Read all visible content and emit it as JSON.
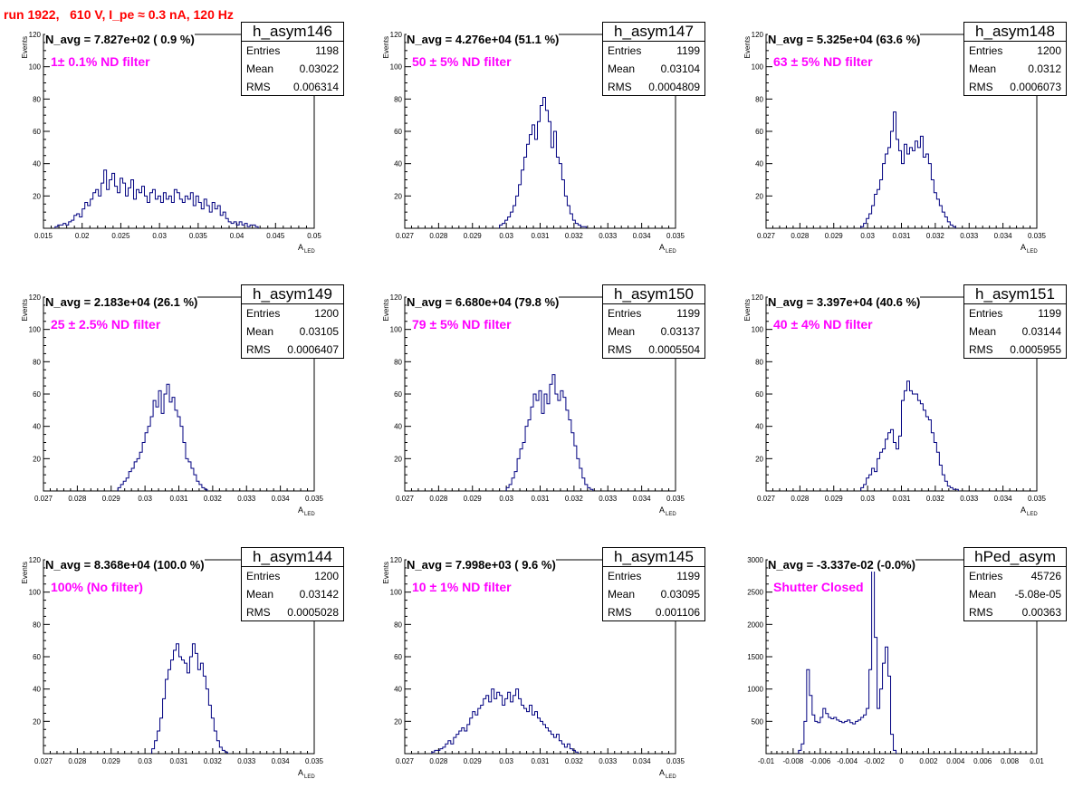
{
  "title": "run 1922,   610 V, I_pe ≈ 0.3 nA, 120 Hz",
  "colors": {
    "title": "#ff0000",
    "histogram": "#000080",
    "filter_label": "#ff00ff"
  },
  "chart_data": [
    {
      "type": "bar",
      "hist_name": "h_asym146",
      "navg_label": "N_avg = 7.827e+02 ( 0.9 %)",
      "filter_label": "1± 0.1% ND filter",
      "stats": [
        {
          "key": "Entries",
          "value": "1198"
        },
        {
          "key": "Mean",
          "value": "0.03022"
        },
        {
          "key": "RMS",
          "value": "0.006314"
        }
      ],
      "ylabel": "Events",
      "xlabel_main": "A",
      "xlabel_sub": "LED",
      "xlim": [
        0.015,
        0.05
      ],
      "ylim": [
        0,
        120
      ],
      "xticks": [
        0.015,
        0.02,
        0.025,
        0.03,
        0.035,
        0.04,
        0.045,
        0.05
      ],
      "xtick_labels": [
        "0.015",
        "0.02",
        "0.025",
        "0.03",
        "0.035",
        "0.04",
        "0.045",
        "0.05"
      ],
      "yticks": [
        20,
        40,
        60,
        80,
        100,
        120
      ],
      "bin_width": 0.00035,
      "x_start": 0.0165,
      "values": [
        1,
        2,
        2,
        3,
        2,
        4,
        5,
        8,
        9,
        7,
        12,
        16,
        14,
        18,
        22,
        24,
        20,
        28,
        36,
        24,
        30,
        34,
        26,
        22,
        31,
        28,
        20,
        25,
        30,
        18,
        24,
        22,
        26,
        20,
        16,
        22,
        24,
        18,
        20,
        16,
        22,
        18,
        20,
        16,
        24,
        22,
        18,
        16,
        20,
        18,
        22,
        14,
        20,
        16,
        12,
        18,
        14,
        10,
        16,
        12,
        14,
        8,
        10,
        6,
        4,
        3,
        4,
        2,
        4,
        2,
        3,
        1,
        2,
        2,
        1
      ]
    },
    {
      "type": "bar",
      "hist_name": "h_asym147",
      "navg_label": "N_avg = 4.276e+04 (51.1 %)",
      "filter_label": "50 ± 5% ND filter",
      "stats": [
        {
          "key": "Entries",
          "value": "1199"
        },
        {
          "key": "Mean",
          "value": "0.03104"
        },
        {
          "key": "RMS",
          "value": "0.0004809"
        }
      ],
      "ylabel": "Events",
      "xlabel_main": "A",
      "xlabel_sub": "LED",
      "xlim": [
        0.027,
        0.035
      ],
      "ylim": [
        0,
        120
      ],
      "xticks": [
        0.027,
        0.028,
        0.029,
        0.03,
        0.031,
        0.032,
        0.033,
        0.034,
        0.035
      ],
      "xtick_labels": [
        "0.027",
        "0.028",
        "0.029",
        "0.03",
        "0.031",
        "0.032",
        "0.033",
        "0.034",
        "0.035"
      ],
      "yticks": [
        20,
        40,
        60,
        80,
        100,
        120
      ],
      "bin_width": 8e-05,
      "x_start": 0.0298,
      "values": [
        2,
        3,
        5,
        7,
        10,
        14,
        20,
        27,
        36,
        44,
        52,
        58,
        64,
        55,
        66,
        76,
        81,
        73,
        66,
        50,
        60,
        44,
        40,
        30,
        20,
        14,
        9,
        5,
        3,
        2,
        1,
        1
      ]
    },
    {
      "type": "bar",
      "hist_name": "h_asym148",
      "navg_label": "N_avg = 5.325e+04 (63.6 %)",
      "filter_label": "63 ± 5% ND filter",
      "stats": [
        {
          "key": "Entries",
          "value": "1200"
        },
        {
          "key": "Mean",
          "value": "0.0312"
        },
        {
          "key": "RMS",
          "value": "0.0006073"
        }
      ],
      "ylabel": "Events",
      "xlabel_main": "A",
      "xlabel_sub": "LED",
      "xlim": [
        0.027,
        0.035
      ],
      "ylim": [
        0,
        120
      ],
      "xticks": [
        0.027,
        0.028,
        0.029,
        0.03,
        0.031,
        0.032,
        0.033,
        0.034,
        0.035
      ],
      "xtick_labels": [
        "0.027",
        "0.028",
        "0.029",
        "0.03",
        "0.031",
        "0.032",
        "0.033",
        "0.034",
        "0.035"
      ],
      "yticks": [
        20,
        40,
        60,
        80,
        100,
        120
      ],
      "bin_width": 8e-05,
      "x_start": 0.0298,
      "values": [
        1,
        3,
        6,
        9,
        14,
        21,
        24,
        30,
        40,
        46,
        50,
        60,
        72,
        55,
        48,
        40,
        52,
        46,
        50,
        48,
        54,
        50,
        57,
        44,
        46,
        40,
        30,
        22,
        18,
        14,
        10,
        7,
        4,
        2,
        1
      ]
    },
    {
      "type": "bar",
      "hist_name": "h_asym149",
      "navg_label": "N_avg = 2.183e+04 (26.1 %)",
      "filter_label": "25 ± 2.5% ND filter",
      "stats": [
        {
          "key": "Entries",
          "value": "1200"
        },
        {
          "key": "Mean",
          "value": "0.03105"
        },
        {
          "key": "RMS",
          "value": "0.0006407"
        }
      ],
      "ylabel": "Events",
      "xlabel_main": "A",
      "xlabel_sub": "LED",
      "xlim": [
        0.027,
        0.035
      ],
      "ylim": [
        0,
        120
      ],
      "xticks": [
        0.027,
        0.028,
        0.029,
        0.03,
        0.031,
        0.032,
        0.033,
        0.034,
        0.035
      ],
      "xtick_labels": [
        "0.027",
        "0.028",
        "0.029",
        "0.03",
        "0.031",
        "0.032",
        "0.033",
        "0.034",
        "0.035"
      ],
      "yticks": [
        20,
        40,
        60,
        80,
        100,
        120
      ],
      "bin_width": 8e-05,
      "x_start": 0.0292,
      "values": [
        2,
        4,
        6,
        8,
        12,
        14,
        18,
        20,
        24,
        30,
        36,
        40,
        46,
        56,
        52,
        62,
        48,
        60,
        66,
        55,
        58,
        50,
        46,
        40,
        30,
        20,
        18,
        14,
        10,
        6,
        4,
        2,
        1
      ]
    },
    {
      "type": "bar",
      "hist_name": "h_asym150",
      "navg_label": "N_avg = 6.680e+04 (79.8 %)",
      "filter_label": "79 ± 5% ND filter",
      "stats": [
        {
          "key": "Entries",
          "value": "1199"
        },
        {
          "key": "Mean",
          "value": "0.03137"
        },
        {
          "key": "RMS",
          "value": "0.0005504"
        }
      ],
      "ylabel": "Events",
      "xlabel_main": "A",
      "xlabel_sub": "LED",
      "xlim": [
        0.027,
        0.035
      ],
      "ylim": [
        0,
        120
      ],
      "xticks": [
        0.027,
        0.028,
        0.029,
        0.03,
        0.031,
        0.032,
        0.033,
        0.034,
        0.035
      ],
      "xtick_labels": [
        "0.027",
        "0.028",
        "0.029",
        "0.03",
        "0.031",
        "0.032",
        "0.033",
        "0.034",
        "0.035"
      ],
      "yticks": [
        20,
        40,
        60,
        80,
        100,
        120
      ],
      "bin_width": 8e-05,
      "x_start": 0.03,
      "values": [
        2,
        4,
        8,
        12,
        20,
        26,
        30,
        40,
        44,
        52,
        60,
        56,
        62,
        48,
        60,
        54,
        66,
        72,
        60,
        56,
        62,
        58,
        50,
        44,
        36,
        28,
        20,
        14,
        8,
        4,
        2,
        1
      ]
    },
    {
      "type": "bar",
      "hist_name": "h_asym151",
      "navg_label": "N_avg = 3.397e+04 (40.6 %)",
      "filter_label": "40 ± 4% ND filter",
      "stats": [
        {
          "key": "Entries",
          "value": "1199"
        },
        {
          "key": "Mean",
          "value": "0.03144"
        },
        {
          "key": "RMS",
          "value": "0.0005955"
        }
      ],
      "ylabel": "Events",
      "xlabel_main": "A",
      "xlabel_sub": "LED",
      "xlim": [
        0.027,
        0.035
      ],
      "ylim": [
        0,
        120
      ],
      "xticks": [
        0.027,
        0.028,
        0.029,
        0.03,
        0.031,
        0.032,
        0.033,
        0.034,
        0.035
      ],
      "xtick_labels": [
        "0.027",
        "0.028",
        "0.029",
        "0.03",
        "0.031",
        "0.032",
        "0.033",
        "0.034",
        "0.035"
      ],
      "yticks": [
        20,
        40,
        60,
        80,
        100,
        120
      ],
      "bin_width": 8e-05,
      "x_start": 0.0298,
      "values": [
        2,
        4,
        8,
        10,
        14,
        12,
        20,
        24,
        26,
        32,
        36,
        38,
        30,
        26,
        34,
        56,
        62,
        68,
        62,
        60,
        60,
        56,
        54,
        50,
        46,
        44,
        36,
        30,
        24,
        16,
        10,
        6,
        3,
        2,
        1,
        1
      ]
    },
    {
      "type": "bar",
      "hist_name": "h_asym144",
      "navg_label": "N_avg = 8.368e+04 (100.0 %)",
      "filter_label": "100% (No filter)",
      "stats": [
        {
          "key": "Entries",
          "value": "1200"
        },
        {
          "key": "Mean",
          "value": "0.03142"
        },
        {
          "key": "RMS",
          "value": "0.0005028"
        }
      ],
      "ylabel": "Events",
      "xlabel_main": "A",
      "xlabel_sub": "LED",
      "xlim": [
        0.027,
        0.035
      ],
      "ylim": [
        0,
        120
      ],
      "xticks": [
        0.027,
        0.028,
        0.029,
        0.03,
        0.031,
        0.032,
        0.033,
        0.034,
        0.035
      ],
      "xtick_labels": [
        "0.027",
        "0.028",
        "0.029",
        "0.03",
        "0.031",
        "0.032",
        "0.033",
        "0.034",
        "0.035"
      ],
      "yticks": [
        20,
        40,
        60,
        80,
        100,
        120
      ],
      "bin_width": 8e-05,
      "x_start": 0.0302,
      "values": [
        3,
        8,
        14,
        22,
        34,
        46,
        52,
        58,
        64,
        68,
        60,
        58,
        56,
        50,
        60,
        68,
        62,
        52,
        56,
        48,
        40,
        30,
        22,
        14,
        8,
        4,
        2,
        1
      ]
    },
    {
      "type": "bar",
      "hist_name": "h_asym145",
      "navg_label": "N_avg = 7.998e+03 ( 9.6 %)",
      "filter_label": "10 ± 1% ND filter",
      "stats": [
        {
          "key": "Entries",
          "value": "1199"
        },
        {
          "key": "Mean",
          "value": "0.03095"
        },
        {
          "key": "RMS",
          "value": "0.001106"
        }
      ],
      "ylabel": "Events",
      "xlabel_main": "A",
      "xlabel_sub": "LED",
      "xlim": [
        0.027,
        0.035
      ],
      "ylim": [
        0,
        120
      ],
      "xticks": [
        0.027,
        0.028,
        0.029,
        0.03,
        0.031,
        0.032,
        0.033,
        0.034,
        0.035
      ],
      "xtick_labels": [
        "0.027",
        "0.028",
        "0.029",
        "0.03",
        "0.031",
        "0.032",
        "0.033",
        "0.034",
        "0.035"
      ],
      "yticks": [
        20,
        40,
        60,
        80,
        100,
        120
      ],
      "bin_width": 8e-05,
      "x_start": 0.0278,
      "values": [
        1,
        2,
        2,
        3,
        4,
        6,
        8,
        6,
        10,
        12,
        14,
        16,
        14,
        18,
        22,
        26,
        24,
        28,
        30,
        34,
        36,
        32,
        40,
        34,
        38,
        36,
        30,
        34,
        38,
        32,
        36,
        40,
        34,
        30,
        28,
        26,
        30,
        24,
        26,
        22,
        20,
        18,
        16,
        14,
        12,
        10,
        12,
        8,
        6,
        4,
        6,
        3,
        2,
        1
      ]
    },
    {
      "type": "bar",
      "hist_name": "hPed_asym",
      "navg_label": "N_avg = -3.337e-02 (-0.0%)",
      "filter_label": "Shutter Closed",
      "stats": [
        {
          "key": "Entries",
          "value": "45726"
        },
        {
          "key": "Mean",
          "value": "-5.08e-05"
        },
        {
          "key": "RMS",
          "value": "0.00363"
        }
      ],
      "ylabel": "",
      "xlabel_main": "",
      "xlabel_sub": "",
      "xlim": [
        -0.01,
        0.01
      ],
      "ylim": [
        0,
        3000
      ],
      "xticks": [
        -0.01,
        -0.008,
        -0.006,
        -0.004,
        -0.002,
        0,
        0.002,
        0.004,
        0.006,
        0.008,
        0.01
      ],
      "xtick_labels": [
        "-0.01",
        "-0.008",
        "-0.006",
        "-0.004",
        "-0.002",
        "0",
        "0.002",
        "0.004",
        "0.006",
        "0.008",
        "0.01"
      ],
      "yticks": [
        500,
        1000,
        1500,
        2000,
        2500,
        3000
      ],
      "bin_width": 0.0002,
      "x_start": -0.0076,
      "values": [
        50,
        150,
        500,
        1300,
        900,
        600,
        500,
        480,
        560,
        700,
        620,
        560,
        540,
        560,
        520,
        500,
        480,
        500,
        520,
        480,
        460,
        500,
        520,
        560,
        600,
        700,
        1300,
        2900,
        1800,
        700,
        1000,
        1400,
        1650,
        1200,
        300,
        50
      ]
    }
  ]
}
